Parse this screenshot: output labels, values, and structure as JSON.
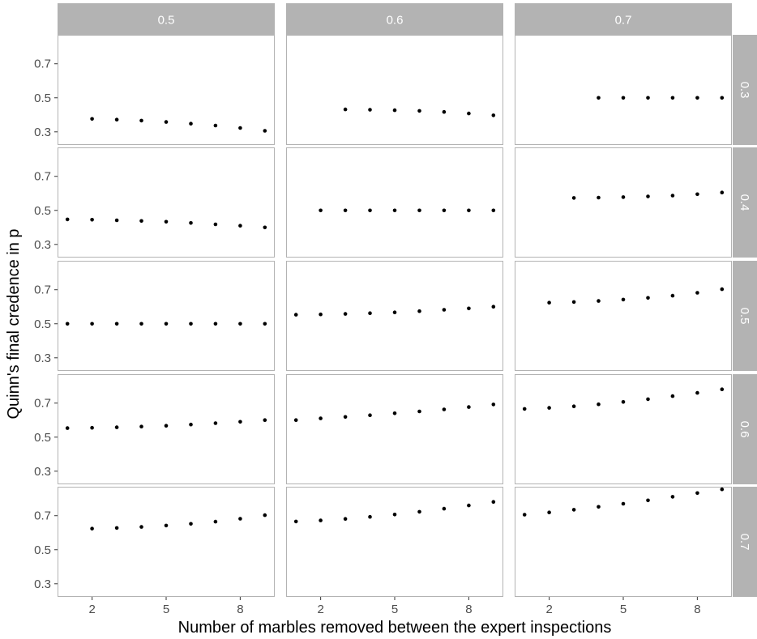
{
  "chart_data": {
    "type": "scatter",
    "xlabel": "Number of marbles removed between the expert inspections",
    "ylabel": "Quinn's final credence in p",
    "xlim": [
      0.6,
      9.4
    ],
    "ylim": [
      0.28,
      0.87
    ],
    "xticks": [
      2,
      5,
      8
    ],
    "yticks": [
      0.3,
      0.5,
      0.7
    ],
    "xtick_labels": [
      "2",
      "5",
      "8"
    ],
    "ytick_labels": [
      "0.3",
      "0.5",
      "0.7"
    ],
    "col_facets": [
      "0.5",
      "0.6",
      "0.7"
    ],
    "row_facets": [
      "0.3",
      "0.4",
      "0.5",
      "0.6",
      "0.7"
    ],
    "grid": false,
    "colors": {
      "strip": "#b3b3b3",
      "points": "#000000",
      "panel_border": "#b3b3b3"
    },
    "panels": [
      {
        "row": "0.3",
        "col": "0.5",
        "x": [
          2,
          3,
          4,
          5,
          6,
          7,
          8,
          9
        ],
        "y": [
          0.376,
          0.372,
          0.366,
          0.358,
          0.348,
          0.337,
          0.323,
          0.306
        ]
      },
      {
        "row": "0.3",
        "col": "0.6",
        "x": [
          3,
          4,
          5,
          6,
          7,
          8,
          9
        ],
        "y": [
          0.432,
          0.43,
          0.427,
          0.423,
          0.417,
          0.408,
          0.397
        ]
      },
      {
        "row": "0.3",
        "col": "0.7",
        "x": [
          4,
          5,
          6,
          7,
          8,
          9
        ],
        "y": [
          0.5,
          0.5,
          0.5,
          0.5,
          0.5,
          0.5
        ]
      },
      {
        "row": "0.4",
        "col": "0.5",
        "x": [
          1,
          2,
          3,
          4,
          5,
          6,
          7,
          8,
          9
        ],
        "y": [
          0.447,
          0.445,
          0.442,
          0.438,
          0.433,
          0.426,
          0.418,
          0.41,
          0.4
        ]
      },
      {
        "row": "0.4",
        "col": "0.6",
        "x": [
          2,
          3,
          4,
          5,
          6,
          7,
          8,
          9
        ],
        "y": [
          0.5,
          0.5,
          0.5,
          0.5,
          0.5,
          0.5,
          0.5,
          0.5
        ]
      },
      {
        "row": "0.4",
        "col": "0.7",
        "x": [
          3,
          4,
          5,
          6,
          7,
          8,
          9
        ],
        "y": [
          0.573,
          0.575,
          0.578,
          0.582,
          0.587,
          0.595,
          0.605
        ]
      },
      {
        "row": "0.5",
        "col": "0.5",
        "x": [
          1,
          2,
          3,
          4,
          5,
          6,
          7,
          8,
          9
        ],
        "y": [
          0.5,
          0.5,
          0.5,
          0.5,
          0.5,
          0.5,
          0.5,
          0.5,
          0.5
        ]
      },
      {
        "row": "0.5",
        "col": "0.6",
        "x": [
          1,
          2,
          3,
          4,
          5,
          6,
          7,
          8,
          9
        ],
        "y": [
          0.553,
          0.555,
          0.558,
          0.562,
          0.567,
          0.574,
          0.582,
          0.59,
          0.6
        ]
      },
      {
        "row": "0.5",
        "col": "0.7",
        "x": [
          2,
          3,
          4,
          5,
          6,
          7,
          8,
          9
        ],
        "y": [
          0.624,
          0.628,
          0.634,
          0.642,
          0.652,
          0.665,
          0.682,
          0.703
        ]
      },
      {
        "row": "0.6",
        "col": "0.5",
        "x": [
          1,
          2,
          3,
          4,
          5,
          6,
          7,
          8,
          9
        ],
        "y": [
          0.553,
          0.555,
          0.558,
          0.562,
          0.567,
          0.574,
          0.582,
          0.59,
          0.6
        ]
      },
      {
        "row": "0.6",
        "col": "0.6",
        "x": [
          1,
          2,
          3,
          4,
          5,
          6,
          7,
          8,
          9
        ],
        "y": [
          0.6,
          0.61,
          0.619,
          0.629,
          0.64,
          0.651,
          0.663,
          0.677,
          0.692
        ]
      },
      {
        "row": "0.6",
        "col": "0.7",
        "x": [
          1,
          2,
          3,
          4,
          5,
          6,
          7,
          8,
          9
        ],
        "y": [
          0.666,
          0.672,
          0.681,
          0.693,
          0.707,
          0.723,
          0.741,
          0.76,
          0.781
        ]
      },
      {
        "row": "0.7",
        "col": "0.5",
        "x": [
          2,
          3,
          4,
          5,
          6,
          7,
          8,
          9
        ],
        "y": [
          0.624,
          0.628,
          0.634,
          0.642,
          0.652,
          0.665,
          0.682,
          0.703
        ]
      },
      {
        "row": "0.7",
        "col": "0.6",
        "x": [
          1,
          2,
          3,
          4,
          5,
          6,
          7,
          8,
          9
        ],
        "y": [
          0.666,
          0.672,
          0.681,
          0.693,
          0.707,
          0.723,
          0.741,
          0.76,
          0.781
        ]
      },
      {
        "row": "0.7",
        "col": "0.7",
        "x": [
          1,
          2,
          3,
          4,
          5,
          6,
          7,
          8,
          9
        ],
        "y": [
          0.706,
          0.719,
          0.735,
          0.752,
          0.77,
          0.79,
          0.811,
          0.833,
          0.855
        ]
      }
    ]
  }
}
